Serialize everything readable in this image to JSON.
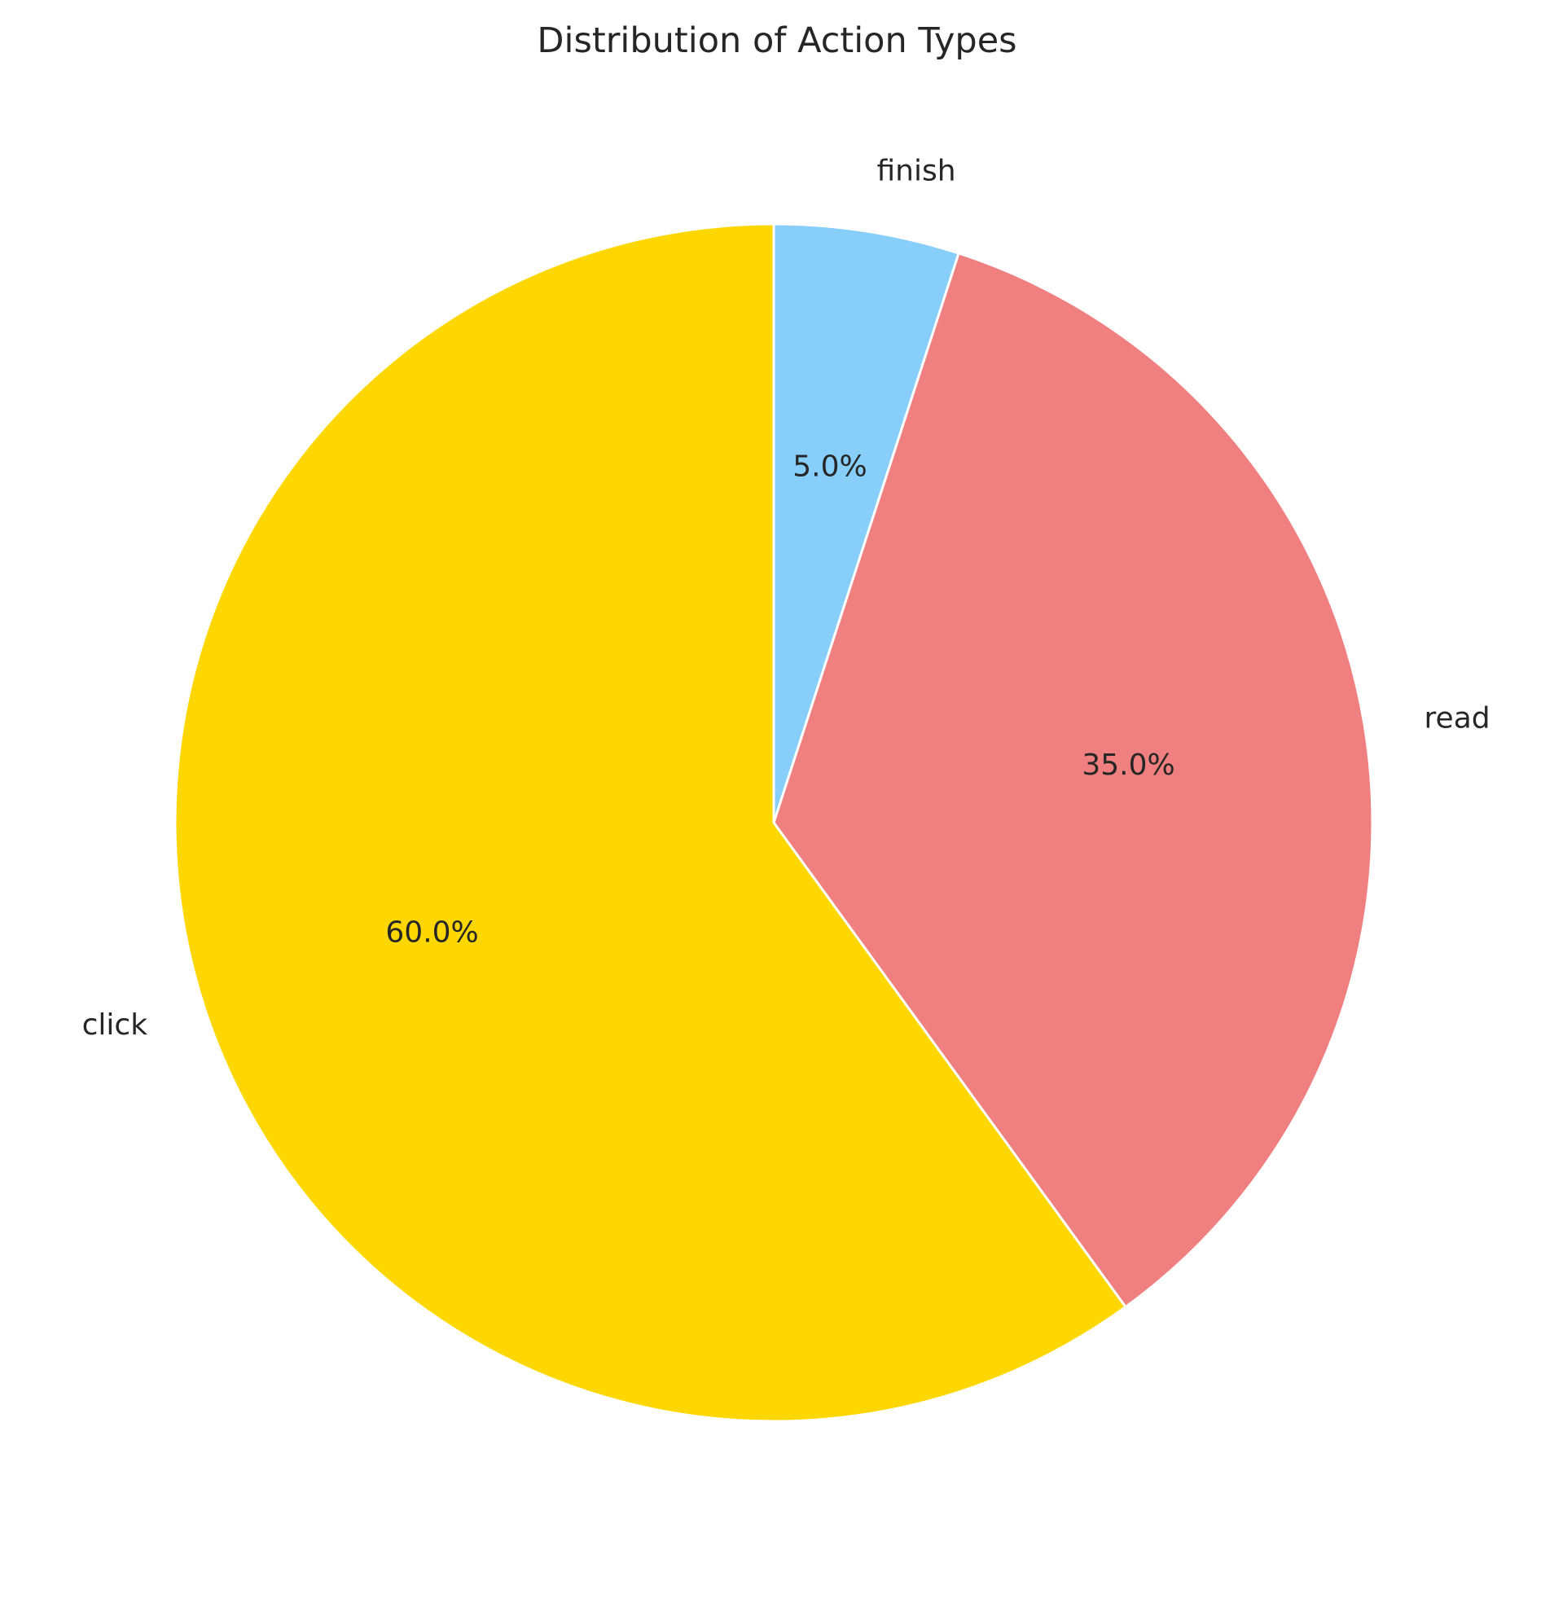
{
  "chart_data": {
    "type": "pie",
    "title": "Distribution of Action Types",
    "categories": [
      "finish",
      "read",
      "click"
    ],
    "values": [
      5.0,
      35.0,
      60.0
    ],
    "percent_labels": [
      "5.0%",
      "35.0%",
      "60.0%"
    ],
    "colors": [
      "#87CEFA",
      "#F08080",
      "#FFD700"
    ],
    "start_angle_deg": 90,
    "direction": "clockwise",
    "edge_color": "#ffffff",
    "legend": "none"
  }
}
